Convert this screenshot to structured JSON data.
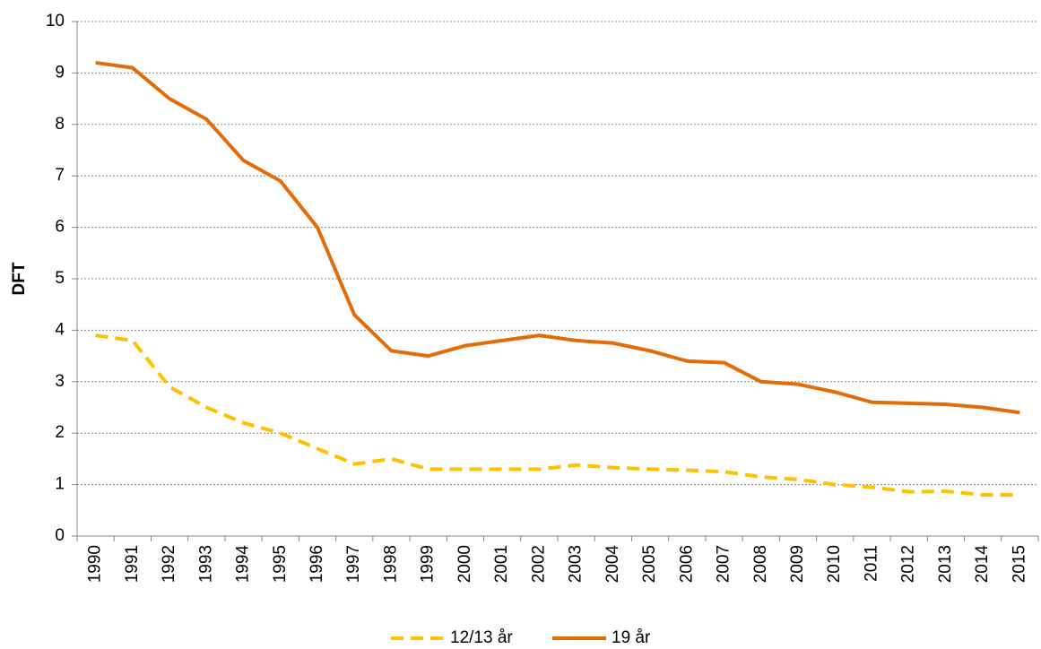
{
  "chart_data": {
    "type": "line",
    "y_label": "DFT",
    "categories": [
      "1990",
      "1991",
      "1992",
      "1993",
      "1994",
      "1995",
      "1996",
      "1997",
      "1998",
      "1999",
      "2000",
      "2001",
      "2002",
      "2003",
      "2004",
      "2005",
      "2006",
      "2007",
      "2008",
      "2009",
      "2010",
      "2011",
      "2012",
      "2013",
      "2014",
      "2015"
    ],
    "series": [
      {
        "name": "12/13 år",
        "color": "#ffc000",
        "dashed": true,
        "values": [
          3.9,
          3.8,
          2.9,
          2.5,
          2.2,
          2.0,
          1.7,
          1.4,
          1.5,
          1.3,
          1.3,
          1.3,
          1.3,
          1.38,
          1.33,
          1.3,
          1.28,
          1.25,
          1.15,
          1.1,
          1.0,
          0.95,
          0.86,
          0.87,
          0.8,
          0.8
        ]
      },
      {
        "name": "19 år",
        "color": "#e36c09",
        "dashed": false,
        "values": [
          9.2,
          9.1,
          8.5,
          8.1,
          7.3,
          6.9,
          6.0,
          4.3,
          3.6,
          3.5,
          3.7,
          3.8,
          3.9,
          3.8,
          3.75,
          3.6,
          3.4,
          3.37,
          3.0,
          2.95,
          2.8,
          2.6,
          2.58,
          2.56,
          2.5,
          2.4
        ]
      }
    ],
    "ylim": [
      0,
      10
    ],
    "yticks": [
      0,
      1,
      2,
      3,
      4,
      5,
      6,
      7,
      8,
      9,
      10
    ],
    "grid": true,
    "legend": "bottom"
  }
}
